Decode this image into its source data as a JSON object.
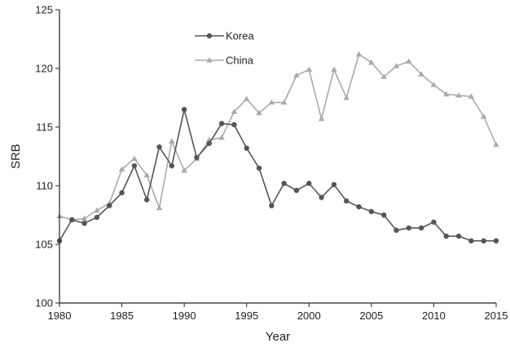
{
  "chart_data": {
    "type": "line",
    "title": "",
    "xlabel": "Year",
    "ylabel": "SRB",
    "xlim": [
      1980,
      2015
    ],
    "ylim": [
      100,
      125
    ],
    "x_ticks": [
      1980,
      1985,
      1990,
      1995,
      2000,
      2005,
      2010,
      2015
    ],
    "y_ticks": [
      100,
      105,
      110,
      115,
      120,
      125
    ],
    "grid": false,
    "legend_position": "top-center",
    "x": [
      1980,
      1981,
      1982,
      1983,
      1984,
      1985,
      1986,
      1987,
      1988,
      1989,
      1990,
      1991,
      1992,
      1993,
      1994,
      1995,
      1996,
      1997,
      1998,
      1999,
      2000,
      2001,
      2002,
      2003,
      2004,
      2005,
      2006,
      2007,
      2008,
      2009,
      2010,
      2011,
      2012,
      2013,
      2014,
      2015
    ],
    "series": [
      {
        "name": "Korea",
        "marker": "circle",
        "color": "#555555",
        "values": [
          105.3,
          107.1,
          106.8,
          107.3,
          108.3,
          109.4,
          111.7,
          108.8,
          113.3,
          111.7,
          116.5,
          112.4,
          113.6,
          115.3,
          115.2,
          113.2,
          111.5,
          108.3,
          110.2,
          109.6,
          110.2,
          109.0,
          110.1,
          108.7,
          108.2,
          107.8,
          107.5,
          106.2,
          106.4,
          106.4,
          106.9,
          105.7,
          105.7,
          105.3,
          105.3,
          105.3
        ]
      },
      {
        "name": "China",
        "marker": "triangle",
        "color": "#aaaaaa",
        "values": [
          107.4,
          107.1,
          107.2,
          107.9,
          108.5,
          111.4,
          112.3,
          110.9,
          108.1,
          113.8,
          111.3,
          112.3,
          113.9,
          114.1,
          116.3,
          117.4,
          116.2,
          117.1,
          117.1,
          119.4,
          119.9,
          115.7,
          119.9,
          117.5,
          121.2,
          120.5,
          119.3,
          120.2,
          120.6,
          119.5,
          118.6,
          117.8,
          117.7,
          117.6,
          115.9,
          113.5
        ]
      }
    ]
  }
}
